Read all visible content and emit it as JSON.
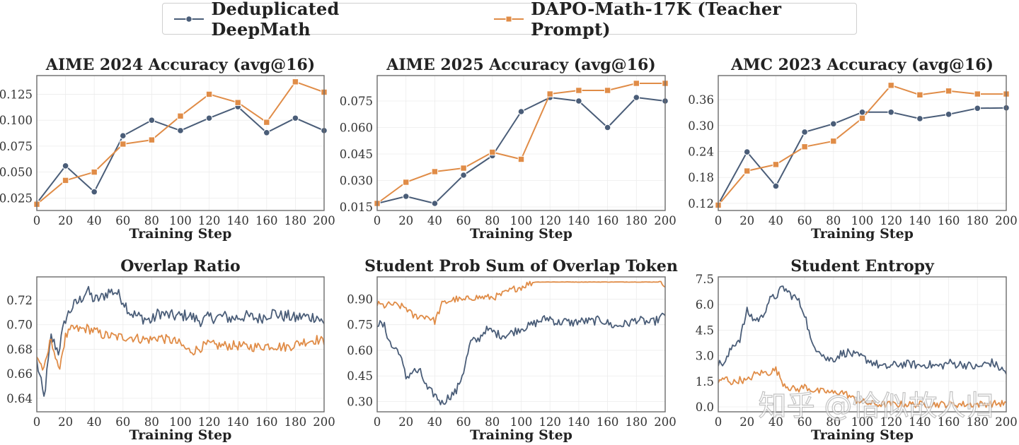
{
  "legend": {
    "items": [
      {
        "label": "Deduplicated DeepMath",
        "color": "#4a5d78",
        "marker": "circle"
      },
      {
        "label": "DAPO-Math-17K (Teacher Prompt)",
        "color": "#e08c47",
        "marker": "square"
      }
    ]
  },
  "watermark": "知乎 @恰似故人归",
  "chart_data": [
    {
      "type": "line",
      "title": "AIME 2024 Accuracy (avg@16)",
      "xlabel": "Training Step",
      "ylabel": "",
      "x": [
        0,
        20,
        40,
        60,
        80,
        100,
        120,
        140,
        160,
        180,
        200
      ],
      "xlim": [
        0,
        200
      ],
      "xticks": [
        0,
        20,
        40,
        60,
        80,
        100,
        120,
        140,
        160,
        180,
        200
      ],
      "ylim": [
        0.013,
        0.143
      ],
      "yticks": [
        0.025,
        0.05,
        0.075,
        0.1,
        0.125
      ],
      "ytick_labels": [
        "0.025",
        "0.050",
        "0.075",
        "0.100",
        "0.125"
      ],
      "grid": true,
      "markers": true,
      "series": [
        {
          "name": "Deduplicated DeepMath",
          "values": [
            0.02,
            0.056,
            0.031,
            0.085,
            0.1,
            0.09,
            0.102,
            0.113,
            0.088,
            0.102,
            0.09
          ]
        },
        {
          "name": "DAPO-Math-17K (Teacher Prompt)",
          "values": [
            0.019,
            0.042,
            0.05,
            0.077,
            0.081,
            0.104,
            0.125,
            0.117,
            0.098,
            0.137,
            0.127
          ]
        }
      ]
    },
    {
      "type": "line",
      "title": "AIME 2025 Accuracy (avg@16)",
      "xlabel": "Training Step",
      "ylabel": "",
      "x": [
        0,
        20,
        40,
        60,
        80,
        100,
        120,
        140,
        160,
        180,
        200
      ],
      "xlim": [
        0,
        200
      ],
      "xticks": [
        0,
        20,
        40,
        60,
        80,
        100,
        120,
        140,
        160,
        180,
        200
      ],
      "ylim": [
        0.013,
        0.0894
      ],
      "yticks": [
        0.015,
        0.03,
        0.045,
        0.06,
        0.075
      ],
      "ytick_labels": [
        "0.015",
        "0.030",
        "0.045",
        "0.060",
        "0.075"
      ],
      "grid": true,
      "markers": true,
      "series": [
        {
          "name": "Deduplicated DeepMath",
          "values": [
            0.017,
            0.021,
            0.017,
            0.033,
            0.044,
            0.069,
            0.077,
            0.075,
            0.06,
            0.077,
            0.075
          ]
        },
        {
          "name": "DAPO-Math-17K (Teacher Prompt)",
          "values": [
            0.017,
            0.029,
            0.035,
            0.037,
            0.046,
            0.042,
            0.079,
            0.081,
            0.081,
            0.085,
            0.085
          ]
        }
      ]
    },
    {
      "type": "line",
      "title": "AMC 2023 Accuracy (avg@16)",
      "xlabel": "Training Step",
      "ylabel": "",
      "x": [
        0,
        20,
        40,
        60,
        80,
        100,
        120,
        140,
        160,
        180,
        200
      ],
      "xlim": [
        0,
        200
      ],
      "xticks": [
        0,
        20,
        40,
        60,
        80,
        100,
        120,
        140,
        160,
        180,
        200
      ],
      "ylim": [
        0.1036,
        0.4156
      ],
      "yticks": [
        0.12,
        0.18,
        0.24,
        0.3,
        0.36
      ],
      "ytick_labels": [
        "0.12",
        "0.18",
        "0.24",
        "0.30",
        "0.36"
      ],
      "grid": true,
      "markers": true,
      "series": [
        {
          "name": "Deduplicated DeepMath",
          "values": [
            0.118,
            0.239,
            0.16,
            0.285,
            0.304,
            0.331,
            0.331,
            0.316,
            0.326,
            0.34,
            0.341
          ]
        },
        {
          "name": "DAPO-Math-17K (Teacher Prompt)",
          "values": [
            0.116,
            0.195,
            0.21,
            0.251,
            0.264,
            0.317,
            0.393,
            0.371,
            0.38,
            0.373,
            0.373
          ]
        }
      ]
    },
    {
      "type": "line",
      "title": "Overlap Ratio",
      "xlabel": "Training Step",
      "ylabel": "",
      "x_step": 5,
      "x_start": 0,
      "xlim": [
        0,
        200
      ],
      "xticks": [
        0,
        20,
        40,
        60,
        80,
        100,
        120,
        140,
        160,
        180,
        200
      ],
      "ylim": [
        0.629,
        0.739
      ],
      "yticks": [
        0.64,
        0.66,
        0.68,
        0.7,
        0.72
      ],
      "ytick_labels": [
        "0.64",
        "0.66",
        "0.68",
        "0.70",
        "0.72"
      ],
      "grid": true,
      "markers": false,
      "note": "values sampled every 5 steps; per-step curve is noisy",
      "series": [
        {
          "name": "Deduplicated DeepMath",
          "noise": 0.005,
          "values": [
            0.67,
            0.64,
            0.69,
            0.678,
            0.705,
            0.715,
            0.72,
            0.728,
            0.72,
            0.722,
            0.727,
            0.727,
            0.72,
            0.71,
            0.707,
            0.705,
            0.703,
            0.71,
            0.708,
            0.707,
            0.707,
            0.708,
            0.705,
            0.703,
            0.706,
            0.706,
            0.707,
            0.705,
            0.706,
            0.707,
            0.706,
            0.705,
            0.708,
            0.71,
            0.707,
            0.707,
            0.705,
            0.707,
            0.706,
            0.707,
            0.7
          ]
        },
        {
          "name": "DAPO-Math-17K (Teacher Prompt)",
          "noise": 0.004,
          "values": [
            0.675,
            0.662,
            0.69,
            0.662,
            0.69,
            0.697,
            0.696,
            0.697,
            0.695,
            0.692,
            0.691,
            0.69,
            0.69,
            0.69,
            0.689,
            0.688,
            0.688,
            0.69,
            0.688,
            0.687,
            0.684,
            0.679,
            0.679,
            0.682,
            0.684,
            0.683,
            0.683,
            0.683,
            0.683,
            0.682,
            0.682,
            0.682,
            0.683,
            0.683,
            0.682,
            0.682,
            0.684,
            0.686,
            0.687,
            0.688,
            0.686
          ]
        }
      ]
    },
    {
      "type": "line",
      "title": "Student Prob Sum of Overlap Token",
      "xlabel": "Training Step",
      "ylabel": "",
      "x_step": 5,
      "x_start": 0,
      "xlim": [
        0,
        200
      ],
      "xticks": [
        0,
        20,
        40,
        60,
        80,
        100,
        120,
        140,
        160,
        180,
        200
      ],
      "ylim": [
        0.24,
        1.03
      ],
      "yticks": [
        0.3,
        0.45,
        0.6,
        0.75,
        0.9
      ],
      "ytick_labels": [
        "0.30",
        "0.45",
        "0.60",
        "0.75",
        "0.90"
      ],
      "grid": true,
      "markers": false,
      "note": "values sampled every 5 steps; per-step curve is noisy",
      "series": [
        {
          "name": "Deduplicated DeepMath",
          "noise": 0.025,
          "values": [
            0.76,
            0.74,
            0.62,
            0.6,
            0.44,
            0.48,
            0.47,
            0.37,
            0.34,
            0.29,
            0.33,
            0.36,
            0.48,
            0.65,
            0.66,
            0.72,
            0.71,
            0.69,
            0.69,
            0.71,
            0.73,
            0.74,
            0.76,
            0.78,
            0.79,
            0.76,
            0.77,
            0.76,
            0.77,
            0.77,
            0.77,
            0.78,
            0.76,
            0.74,
            0.75,
            0.76,
            0.78,
            0.77,
            0.76,
            0.78,
            0.81
          ]
        },
        {
          "name": "DAPO-Math-17K (Teacher Prompt)",
          "noise": 0.02,
          "values": [
            0.87,
            0.86,
            0.87,
            0.86,
            0.85,
            0.8,
            0.8,
            0.8,
            0.77,
            0.87,
            0.89,
            0.9,
            0.89,
            0.91,
            0.91,
            0.91,
            0.91,
            0.92,
            0.94,
            0.96,
            0.97,
            0.99,
            1.0,
            1.0,
            1.0,
            1.0,
            1.0,
            1.0,
            1.0,
            1.0,
            1.0,
            1.0,
            1.0,
            1.0,
            1.0,
            1.0,
            1.0,
            1.0,
            1.0,
            1.0,
            0.99
          ]
        }
      ]
    },
    {
      "type": "line",
      "title": "Student Entropy",
      "xlabel": "Training Step",
      "ylabel": "",
      "x_step": 5,
      "x_start": 0,
      "xlim": [
        0,
        200
      ],
      "xticks": [
        0,
        20,
        40,
        60,
        80,
        100,
        120,
        140,
        160,
        180,
        200
      ],
      "ylim": [
        -0.29,
        7.62
      ],
      "yticks": [
        0.0,
        1.5,
        3.0,
        4.5,
        6.0,
        7.5
      ],
      "ytick_labels": [
        "0.0",
        "1.5",
        "3.0",
        "4.5",
        "6.0",
        "7.5"
      ],
      "grid": true,
      "markers": false,
      "note": "values sampled every 5 steps; per-step curve is noisy",
      "series": [
        {
          "name": "Deduplicated DeepMath",
          "noise": 0.25,
          "values": [
            2.5,
            2.6,
            3.6,
            4.0,
            5.6,
            5.1,
            5.2,
            6.2,
            6.5,
            7.0,
            6.6,
            6.3,
            5.5,
            3.6,
            3.4,
            2.8,
            2.8,
            3.1,
            3.2,
            3.0,
            2.9,
            2.7,
            2.5,
            2.3,
            2.4,
            2.5,
            2.5,
            2.5,
            2.4,
            2.5,
            2.4,
            2.4,
            2.6,
            2.5,
            2.5,
            2.4,
            2.3,
            2.5,
            2.6,
            2.3,
            2.0
          ]
        },
        {
          "name": "DAPO-Math-17K (Teacher Prompt)",
          "noise": 0.2,
          "values": [
            1.4,
            1.7,
            1.4,
            1.6,
            1.5,
            1.9,
            2.0,
            2.0,
            2.2,
            1.4,
            1.1,
            1.0,
            1.2,
            1.0,
            0.9,
            0.9,
            0.8,
            0.9,
            0.7,
            0.4,
            0.3,
            0.2,
            0.15,
            0.15,
            0.15,
            0.15,
            0.15,
            0.15,
            0.15,
            0.15,
            0.15,
            0.15,
            0.15,
            0.15,
            0.15,
            0.15,
            0.15,
            0.17,
            0.18,
            0.2,
            0.2
          ]
        }
      ]
    }
  ]
}
